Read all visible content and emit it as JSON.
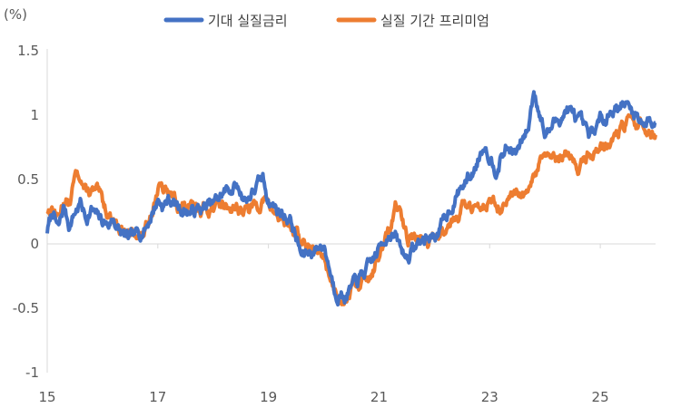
{
  "chart_data": {
    "type": "line",
    "unit_label": "(%)",
    "title": "",
    "xlabel": "",
    "ylabel": "",
    "xlim": [
      15,
      26
    ],
    "ylim": [
      -1,
      1.5
    ],
    "x_ticks": [
      {
        "value": 15,
        "label": "15"
      },
      {
        "value": 17,
        "label": "17"
      },
      {
        "value": 19,
        "label": "19"
      },
      {
        "value": 21,
        "label": "21"
      },
      {
        "value": 23,
        "label": "23"
      },
      {
        "value": 25,
        "label": "25"
      }
    ],
    "y_ticks": [
      {
        "value": 1.5,
        "label": "1.5"
      },
      {
        "value": 1,
        "label": "1"
      },
      {
        "value": 0.5,
        "label": "0.5"
      },
      {
        "value": 0,
        "label": "0"
      },
      {
        "value": -0.5,
        "label": "-0.5"
      },
      {
        "value": -1,
        "label": "-1"
      }
    ],
    "legend_position": "top-center",
    "grid": false,
    "series": [
      {
        "name": "기대 실질금리",
        "color": "#4472C4",
        "x": [
          15.0,
          15.1,
          15.2,
          15.3,
          15.4,
          15.5,
          15.6,
          15.7,
          15.8,
          15.9,
          16.0,
          16.1,
          16.2,
          16.3,
          16.4,
          16.5,
          16.6,
          16.7,
          16.8,
          16.9,
          17.0,
          17.1,
          17.2,
          17.4,
          17.6,
          17.8,
          18.0,
          18.2,
          18.4,
          18.6,
          18.8,
          18.9,
          19.0,
          19.1,
          19.2,
          19.4,
          19.6,
          19.8,
          20.0,
          20.2,
          20.4,
          20.6,
          20.8,
          21.0,
          21.1,
          21.2,
          21.3,
          21.4,
          21.5,
          21.7,
          21.9,
          22.1,
          22.3,
          22.5,
          22.7,
          22.9,
          23.1,
          23.3,
          23.5,
          23.7,
          23.8,
          23.9,
          24.0,
          24.2,
          24.4,
          24.6,
          24.8,
          25.0,
          25.2,
          25.4,
          25.6,
          25.8,
          26.0
        ],
        "values": [
          0.1,
          0.25,
          0.1,
          0.28,
          0.15,
          0.25,
          0.32,
          0.2,
          0.27,
          0.2,
          0.17,
          0.15,
          0.2,
          0.1,
          0.05,
          0.02,
          0.05,
          0.1,
          0.15,
          0.25,
          0.35,
          0.3,
          0.35,
          0.28,
          0.25,
          0.27,
          0.3,
          0.4,
          0.45,
          0.35,
          0.45,
          0.5,
          0.35,
          0.3,
          0.25,
          0.2,
          -0.1,
          -0.05,
          0.0,
          -0.35,
          -0.4,
          -0.3,
          -0.2,
          -0.05,
          0.05,
          0.1,
          0.05,
          -0.05,
          -0.1,
          0.0,
          0.05,
          0.1,
          0.3,
          0.45,
          0.55,
          0.8,
          0.6,
          0.75,
          0.7,
          0.9,
          1.2,
          1.05,
          0.85,
          0.95,
          1.05,
          0.95,
          0.8,
          0.95,
          1.05,
          1.1,
          1.02,
          0.95,
          0.95
        ],
        "seed": 7
      },
      {
        "name": "실질 기간 프리미엄",
        "color": "#ED7D31",
        "x": [
          15.0,
          15.1,
          15.2,
          15.3,
          15.4,
          15.5,
          15.6,
          15.7,
          15.8,
          15.9,
          16.0,
          16.1,
          16.2,
          16.3,
          16.4,
          16.5,
          16.6,
          16.7,
          16.8,
          16.9,
          17.0,
          17.1,
          17.2,
          17.4,
          17.6,
          17.8,
          18.0,
          18.2,
          18.4,
          18.6,
          18.8,
          18.9,
          19.0,
          19.1,
          19.2,
          19.4,
          19.6,
          19.8,
          20.0,
          20.2,
          20.4,
          20.6,
          20.8,
          21.0,
          21.1,
          21.2,
          21.3,
          21.4,
          21.5,
          21.7,
          21.9,
          22.1,
          22.3,
          22.5,
          22.7,
          22.9,
          23.1,
          23.3,
          23.5,
          23.7,
          23.8,
          23.9,
          24.0,
          24.2,
          24.4,
          24.6,
          24.8,
          25.0,
          25.2,
          25.4,
          25.6,
          25.8,
          26.0
        ],
        "values": [
          0.25,
          0.3,
          0.2,
          0.35,
          0.3,
          0.5,
          0.55,
          0.4,
          0.4,
          0.38,
          0.3,
          0.25,
          0.2,
          0.15,
          0.1,
          0.05,
          0.1,
          0.05,
          0.12,
          0.3,
          0.45,
          0.4,
          0.38,
          0.3,
          0.25,
          0.28,
          0.3,
          0.3,
          0.3,
          0.25,
          0.3,
          0.35,
          0.3,
          0.25,
          0.2,
          0.15,
          0.0,
          -0.05,
          -0.1,
          -0.35,
          -0.4,
          -0.3,
          -0.25,
          -0.1,
          0.0,
          0.1,
          0.3,
          0.2,
          0.05,
          0.05,
          0.0,
          0.1,
          0.2,
          0.3,
          0.25,
          0.35,
          0.3,
          0.3,
          0.35,
          0.35,
          0.5,
          0.6,
          0.7,
          0.6,
          0.7,
          0.6,
          0.7,
          0.75,
          0.8,
          0.9,
          0.95,
          0.9,
          0.85
        ],
        "seed": 13
      }
    ]
  }
}
